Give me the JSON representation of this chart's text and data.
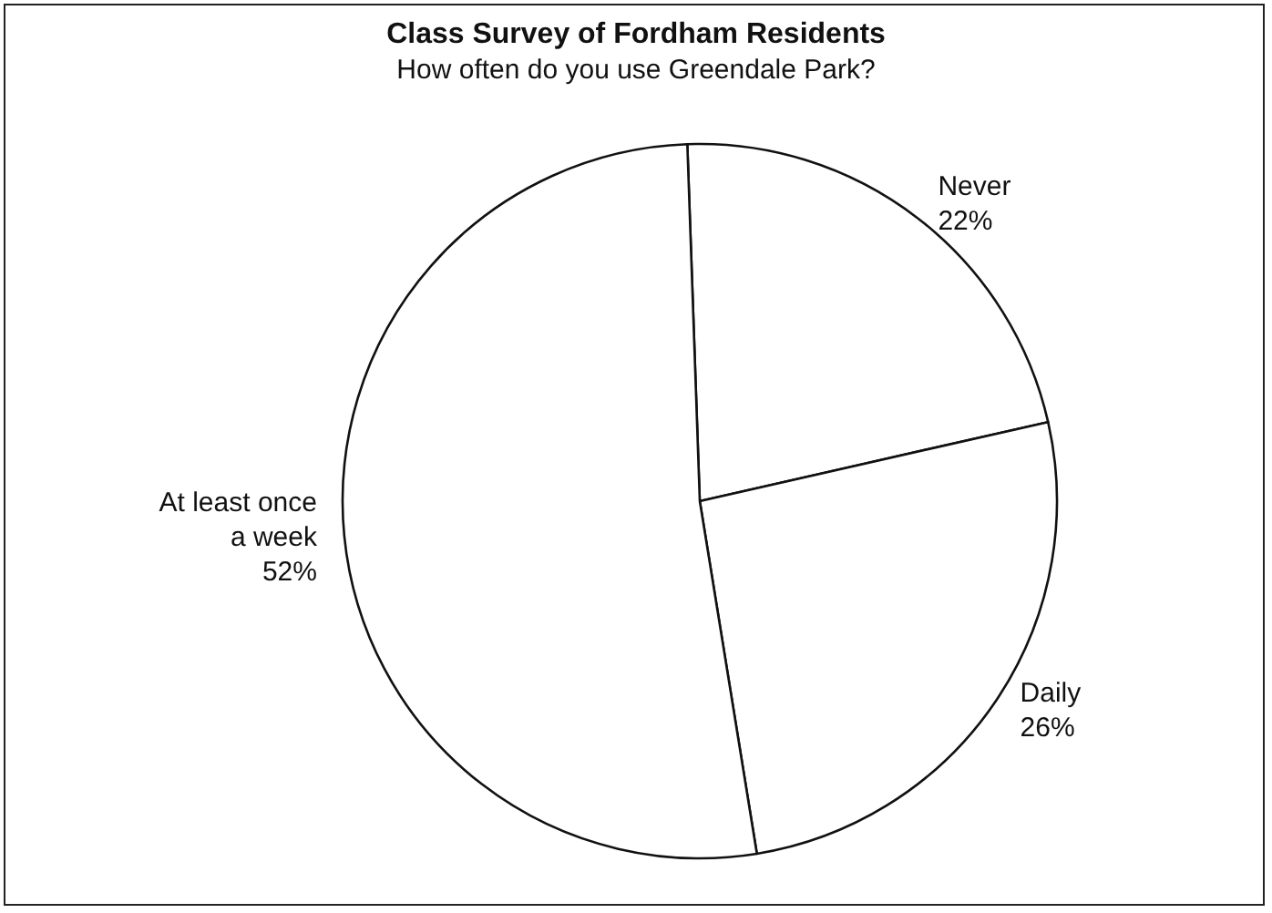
{
  "chart_data": {
    "type": "pie",
    "title": "Class Survey of Fordham Residents",
    "subtitle": "How often do you use Greendale Park?",
    "categories": [
      "Never",
      "Daily",
      "At least once a week"
    ],
    "values": [
      22,
      26,
      52
    ],
    "value_labels": [
      "22%",
      "26%",
      "52%"
    ],
    "colors": [
      "#ffffff",
      "#ffffff",
      "#ffffff"
    ],
    "legend": false
  }
}
